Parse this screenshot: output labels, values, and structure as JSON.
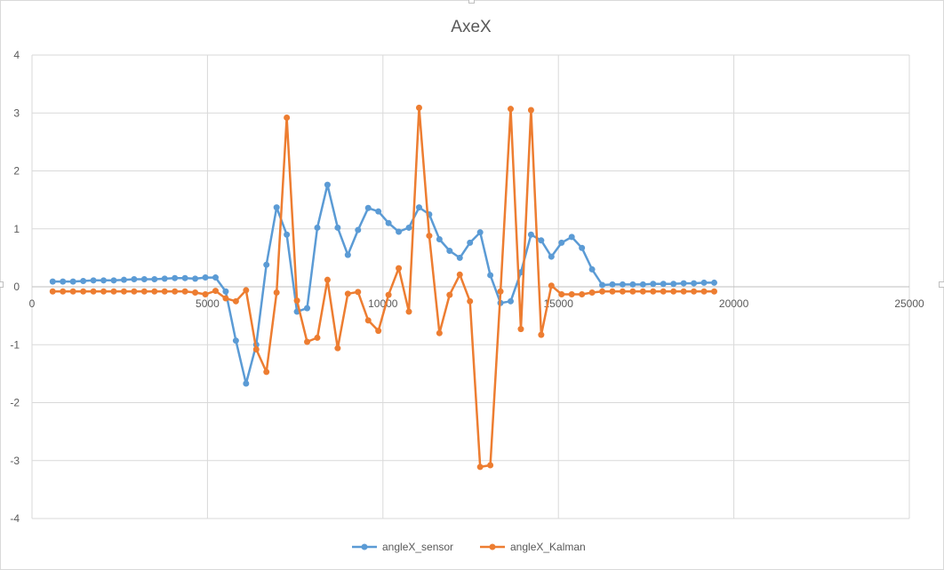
{
  "chart_data": {
    "type": "scatter",
    "title": "AxeX",
    "xlim": [
      0,
      25000
    ],
    "ylim": [
      -4,
      4
    ],
    "xticks": [
      0,
      5000,
      10000,
      15000,
      20000,
      25000
    ],
    "yticks": [
      -4,
      -3,
      -2,
      -1,
      0,
      1,
      2,
      3,
      4
    ],
    "grid": true,
    "legend_position": "bottom",
    "x": [
      590,
      880,
      1170,
      1460,
      1750,
      2040,
      2330,
      2620,
      2910,
      3200,
      3490,
      3780,
      4070,
      4360,
      4650,
      4940,
      5230,
      5520,
      5810,
      6100,
      6390,
      6680,
      6970,
      7260,
      7550,
      7840,
      8130,
      8420,
      8710,
      9000,
      9290,
      9580,
      9870,
      10160,
      10450,
      10740,
      11030,
      11320,
      11610,
      11900,
      12190,
      12480,
      12770,
      13060,
      13350,
      13640,
      13930,
      14220,
      14510,
      14800,
      15090,
      15380,
      15670,
      15960,
      16250,
      16540,
      16830,
      17120,
      17410,
      17700,
      17990,
      18280,
      18570,
      18860,
      19150,
      19440
    ],
    "series": [
      {
        "name": "angleX_sensor",
        "color": "#5b9bd5",
        "values": [
          0.09,
          0.09,
          0.09,
          0.1,
          0.11,
          0.11,
          0.11,
          0.12,
          0.13,
          0.13,
          0.13,
          0.14,
          0.15,
          0.15,
          0.14,
          0.16,
          0.16,
          -0.08,
          -0.93,
          -1.67,
          -1.0,
          0.38,
          1.37,
          0.9,
          -0.43,
          -0.37,
          1.02,
          1.76,
          1.02,
          0.55,
          0.98,
          1.36,
          1.3,
          1.1,
          0.95,
          1.02,
          1.37,
          1.25,
          0.82,
          0.62,
          0.5,
          0.76,
          0.94,
          0.2,
          -0.28,
          -0.25,
          0.25,
          0.9,
          0.8,
          0.52,
          0.76,
          0.86,
          0.67,
          0.3,
          0.03,
          0.04,
          0.04,
          0.04,
          0.04,
          0.05,
          0.05,
          0.05,
          0.06,
          0.06,
          0.07,
          0.07
        ]
      },
      {
        "name": "angleX_Kalman",
        "color": "#ed7d31",
        "values": [
          -0.08,
          -0.08,
          -0.08,
          -0.08,
          -0.08,
          -0.08,
          -0.08,
          -0.08,
          -0.08,
          -0.08,
          -0.08,
          -0.08,
          -0.08,
          -0.08,
          -0.1,
          -0.13,
          -0.07,
          -0.2,
          -0.25,
          -0.06,
          -1.08,
          -1.47,
          -0.1,
          2.92,
          -0.24,
          -0.95,
          -0.88,
          0.12,
          -1.06,
          -0.12,
          -0.09,
          -0.58,
          -0.76,
          -0.14,
          0.32,
          -0.43,
          3.09,
          0.88,
          -0.8,
          -0.14,
          0.21,
          -0.25,
          -3.11,
          -3.08,
          -0.08,
          3.07,
          -0.73,
          3.05,
          -0.83,
          0.02,
          -0.13,
          -0.13,
          -0.13,
          -0.1,
          -0.08,
          -0.08,
          -0.08,
          -0.08,
          -0.08,
          -0.08,
          -0.08,
          -0.08,
          -0.08,
          -0.08,
          -0.08,
          -0.08
        ]
      }
    ]
  }
}
